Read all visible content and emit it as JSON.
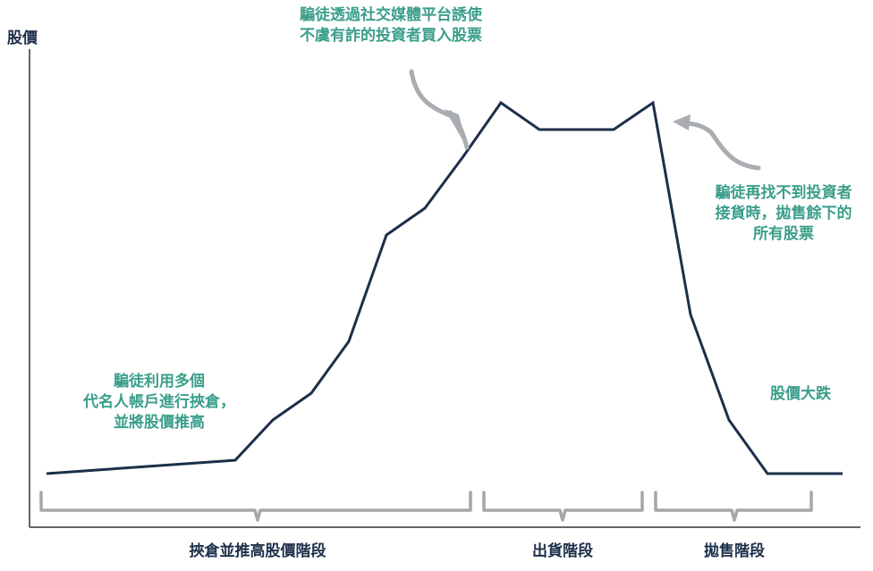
{
  "y_axis_label": "股價",
  "annotations": {
    "top": [
      "騙徒透過社交媒體平台誘使",
      "不虞有詐的投資者買入股票"
    ],
    "right": [
      "騙徒再找不到投資者",
      "接貨時，拋售餘下的",
      "所有股票"
    ],
    "left": [
      "騙徒利用多個",
      "代名人帳戶進行挾倉，",
      "並將股價推高"
    ],
    "drop": "股價大跌"
  },
  "phases": [
    "挾倉並推高股價階段",
    "出貨階段",
    "拋售階段"
  ],
  "colors": {
    "line": "#1d2f4a",
    "annotation": "#3a9e8a",
    "arrow": "#a9adb1",
    "bracket": "#a6a6a6",
    "axis": "#333333"
  }
}
